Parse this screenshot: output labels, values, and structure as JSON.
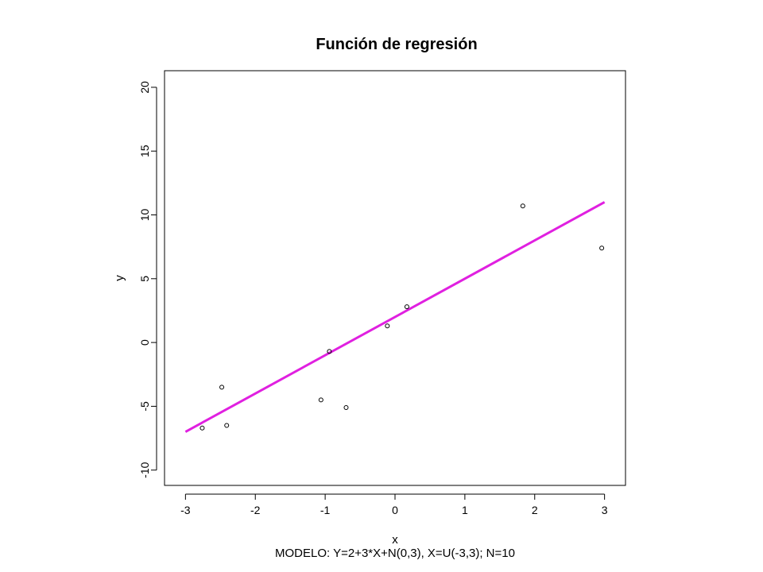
{
  "chart_data": {
    "type": "scatter",
    "title": "Función de regresión",
    "xlabel": "x",
    "ylabel": "y",
    "subtitle": "MODELO: Y=2+3*X+N(0,3), X=U(-3,3);  N=10",
    "xlim": [
      -3.3,
      3.3
    ],
    "ylim": [
      -11.2,
      21.3
    ],
    "x_ticks": [
      -3,
      -2,
      -1,
      0,
      1,
      2,
      3
    ],
    "y_ticks": [
      -10,
      -5,
      0,
      5,
      10,
      15,
      20
    ],
    "x_tick_labels": [
      "-3",
      "-2",
      "-1",
      "0",
      "1",
      "2",
      "3"
    ],
    "y_tick_labels": [
      "-10",
      "-5",
      "0",
      "5",
      "10",
      "15",
      "20"
    ],
    "grid": false,
    "points": [
      {
        "x": -2.76,
        "y": -6.7
      },
      {
        "x": -2.48,
        "y": -3.5
      },
      {
        "x": -2.41,
        "y": -6.5
      },
      {
        "x": -1.06,
        "y": -4.5
      },
      {
        "x": -0.94,
        "y": -0.7
      },
      {
        "x": -0.7,
        "y": -5.1
      },
      {
        "x": -0.11,
        "y": 1.3
      },
      {
        "x": 0.17,
        "y": 2.8
      },
      {
        "x": 1.83,
        "y": 10.7
      },
      {
        "x": 2.96,
        "y": 7.4
      }
    ],
    "regression_line": {
      "color": "#e020e0",
      "from": {
        "x": -3,
        "y": -7
      },
      "to": {
        "x": 3,
        "y": 11
      }
    },
    "point_color": "#000000"
  }
}
